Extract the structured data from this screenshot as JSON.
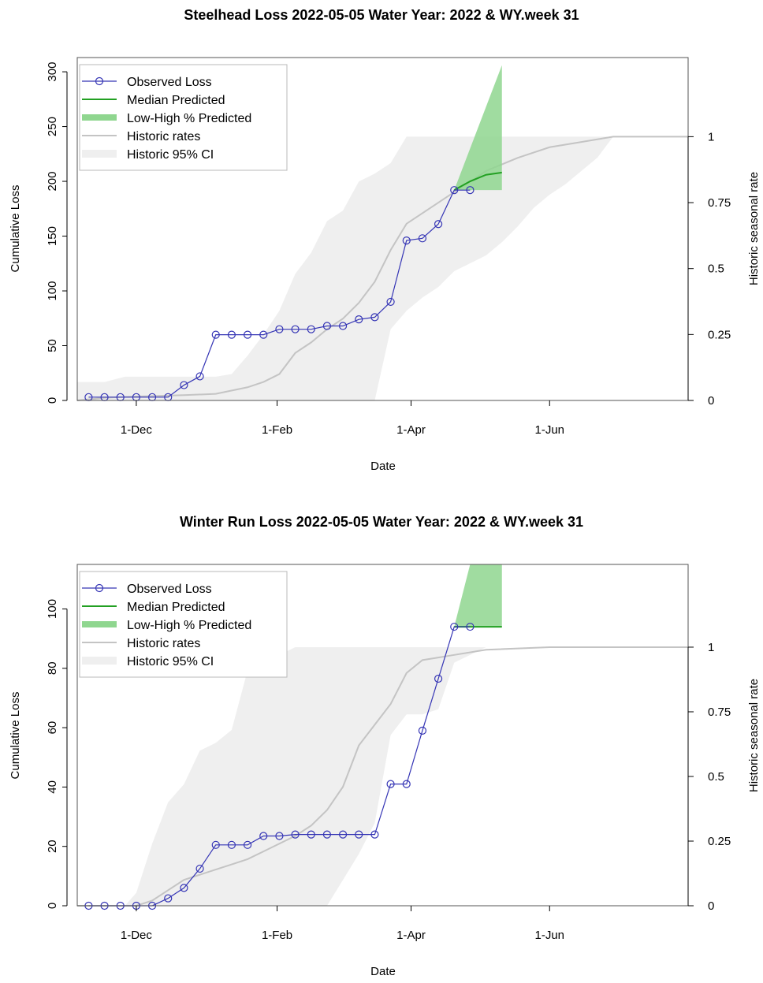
{
  "charts": [
    {
      "title": "Steelhead Loss 2022-05-05  Water Year: 2022 & WY.week 31",
      "xlabel": "Date",
      "ylabel": "Cumulative Loss",
      "y2label": "Historic seasonal rate",
      "legend": [
        "Observed Loss",
        "Median Predicted",
        "Low-High % Predicted",
        "Historic rates",
        "Historic 95% CI"
      ]
    },
    {
      "title": "Winter Run Loss 2022-05-05  Water Year: 2022 & WY.week 31",
      "xlabel": "Date",
      "ylabel": "Cumulative Loss",
      "y2label": "Historic seasonal rate",
      "legend": [
        "Observed Loss",
        "Median Predicted",
        "Low-High % Predicted",
        "Historic rates",
        "Historic 95% CI"
      ]
    }
  ],
  "chart_data": [
    {
      "type": "line",
      "title": "Steelhead Loss 2022-05-05  Water Year: 2022 & WY.week 31",
      "xlabel": "Date",
      "ylabel": "Cumulative Loss",
      "y2label": "Historic seasonal rate",
      "x_day_range": [
        -26,
        243
      ],
      "ylim": [
        0,
        313
      ],
      "y2lim": [
        0,
        1.3
      ],
      "yticks": [
        0,
        50,
        100,
        150,
        200,
        250,
        300
      ],
      "y2ticks": [
        0,
        0.25,
        0.5,
        0.75,
        1
      ],
      "y2ticklabels": [
        "0",
        "0.25",
        "0.5",
        "0.75",
        "1"
      ],
      "xticks": [
        {
          "label": "1-Dec",
          "day": 0
        },
        {
          "label": "1-Feb",
          "day": 62
        },
        {
          "label": "1-Apr",
          "day": 121
        },
        {
          "label": "1-Jun",
          "day": 182
        }
      ],
      "legend_position": "top-left",
      "grid": false,
      "colors": {
        "observed": "#3535b5",
        "median": "#22a022",
        "predicted_band": "#8fd68f",
        "historic": "#c4c4c4",
        "historic_ci": "#efefef"
      },
      "series": [
        {
          "name": "Observed Loss",
          "x": [
            -21,
            -14,
            -7,
            0,
            7,
            14,
            21,
            28,
            35,
            42,
            49,
            56,
            63,
            70,
            77,
            84,
            91,
            98,
            105,
            112,
            119,
            126,
            133,
            140,
            147,
            154
          ],
          "values": [
            3,
            3,
            3,
            3,
            3,
            3,
            14,
            22,
            60,
            60,
            60,
            60,
            65,
            65,
            65,
            68,
            68,
            74,
            76,
            90,
            146,
            148,
            161,
            192,
            192,
            null
          ]
        },
        {
          "name": "Median Predicted",
          "x": [
            140,
            147,
            154,
            161
          ],
          "values": [
            192,
            200,
            206,
            208
          ]
        },
        {
          "name": "Low-High % Predicted",
          "x": [
            140,
            161
          ],
          "low": [
            192,
            192
          ],
          "high": [
            192,
            306
          ]
        },
        {
          "name": "Historic rates",
          "x": [
            -26,
            -14,
            0,
            21,
            35,
            49,
            56,
            63,
            70,
            77,
            84,
            91,
            98,
            105,
            112,
            119,
            126,
            133,
            140,
            147,
            154,
            168,
            182,
            196,
            210,
            230,
            243
          ],
          "values": [
            0.0,
            0.01,
            0.015,
            0.02,
            0.025,
            0.05,
            0.07,
            0.1,
            0.18,
            0.22,
            0.27,
            0.31,
            0.37,
            0.45,
            0.57,
            0.67,
            0.71,
            0.75,
            0.79,
            0.83,
            0.87,
            0.92,
            0.96,
            0.98,
            1.0,
            1.0,
            1.0
          ]
        },
        {
          "name": "Historic 95% CI",
          "x": [
            -26,
            -14,
            -5,
            10,
            25,
            35,
            42,
            49,
            56,
            63,
            70,
            77,
            84,
            91,
            98,
            105,
            112,
            119,
            126,
            133,
            140,
            147,
            154,
            161,
            168,
            175,
            182,
            189,
            196,
            203,
            210,
            230,
            243
          ],
          "low": [
            0,
            0,
            0,
            0,
            0,
            0,
            0,
            0,
            0,
            0,
            0,
            0,
            0,
            0,
            0,
            0,
            0.27,
            0.34,
            0.39,
            0.43,
            0.49,
            0.52,
            0.55,
            0.6,
            0.66,
            0.73,
            0.78,
            0.82,
            0.87,
            0.92,
            1.0,
            1.0,
            1.0
          ],
          "high": [
            0.07,
            0.07,
            0.09,
            0.09,
            0.09,
            0.09,
            0.1,
            0.17,
            0.25,
            0.34,
            0.48,
            0.56,
            0.68,
            0.72,
            0.83,
            0.86,
            0.9,
            1.0,
            1.0,
            1.0,
            1.0,
            1.0,
            1.0,
            1.0,
            1.0,
            1.0,
            1.0,
            1.0,
            1.0,
            1.0,
            1.0,
            1.0,
            1.0
          ]
        }
      ]
    },
    {
      "type": "line",
      "title": "Winter Run Loss 2022-05-05  Water Year: 2022 & WY.week 31",
      "xlabel": "Date",
      "ylabel": "Cumulative Loss",
      "y2label": "Historic seasonal rate",
      "x_day_range": [
        -26,
        243
      ],
      "ylim": [
        0,
        115
      ],
      "y2lim": [
        0,
        1.32
      ],
      "yticks": [
        0,
        20,
        40,
        60,
        80,
        100
      ],
      "y2ticks": [
        0,
        0.25,
        0.5,
        0.75,
        1
      ],
      "y2ticklabels": [
        "0",
        "0.25",
        "0.5",
        "0.75",
        "1"
      ],
      "xticks": [
        {
          "label": "1-Dec",
          "day": 0
        },
        {
          "label": "1-Feb",
          "day": 62
        },
        {
          "label": "1-Apr",
          "day": 121
        },
        {
          "label": "1-Jun",
          "day": 182
        }
      ],
      "legend_position": "top-left",
      "grid": false,
      "colors": {
        "observed": "#3535b5",
        "median": "#22a022",
        "predicted_band": "#8fd68f",
        "historic": "#c4c4c4",
        "historic_ci": "#efefef"
      },
      "series": [
        {
          "name": "Observed Loss",
          "x": [
            -21,
            -14,
            -7,
            0,
            7,
            14,
            21,
            28,
            35,
            42,
            49,
            56,
            63,
            70,
            77,
            84,
            91,
            98,
            105,
            112,
            119,
            126,
            133,
            140,
            147
          ],
          "values": [
            0,
            0,
            0,
            0,
            0,
            2.5,
            6,
            12.5,
            20.5,
            20.5,
            20.5,
            23.5,
            23.5,
            24,
            24,
            24,
            24,
            24,
            24,
            41,
            41,
            59,
            76.5,
            94,
            94
          ]
        },
        {
          "name": "Median Predicted",
          "x": [
            140,
            147,
            154,
            161
          ],
          "values": [
            94,
            94,
            94,
            94
          ]
        },
        {
          "name": "Low-High % Predicted",
          "x": [
            140,
            147,
            161
          ],
          "low": [
            94,
            94,
            94
          ],
          "high": [
            94,
            115,
            115
          ]
        },
        {
          "name": "Historic rates",
          "x": [
            -26,
            -7,
            0,
            7,
            14,
            21,
            28,
            35,
            42,
            49,
            56,
            63,
            70,
            77,
            84,
            91,
            98,
            105,
            112,
            119,
            126,
            133,
            140,
            154,
            182,
            210,
            243
          ],
          "values": [
            0,
            0,
            0,
            0.02,
            0.06,
            0.1,
            0.12,
            0.14,
            0.16,
            0.18,
            0.21,
            0.24,
            0.27,
            0.31,
            0.37,
            0.46,
            0.62,
            0.7,
            0.78,
            0.9,
            0.95,
            0.96,
            0.97,
            0.99,
            1.0,
            1.0,
            1.0
          ]
        },
        {
          "name": "Historic 95% CI",
          "x": [
            -26,
            -5,
            0,
            7,
            14,
            21,
            28,
            35,
            42,
            49,
            56,
            63,
            70,
            77,
            84,
            91,
            98,
            105,
            112,
            119,
            126,
            133,
            140,
            154,
            182,
            210,
            243
          ],
          "low": [
            0,
            0,
            0,
            0,
            0,
            0,
            0,
            0,
            0,
            0,
            0,
            0,
            0,
            0,
            0,
            0.1,
            0.2,
            0.32,
            0.66,
            0.74,
            0.74,
            0.76,
            0.94,
            1.0,
            1.0,
            1.0,
            1.0
          ],
          "high": [
            0,
            0,
            0.05,
            0.24,
            0.4,
            0.47,
            0.6,
            0.63,
            0.68,
            0.91,
            0.92,
            0.97,
            1.0,
            1.0,
            1.0,
            1.0,
            1.0,
            1.0,
            1.0,
            1.0,
            1.0,
            1.0,
            1.0,
            1.0,
            1.0,
            1.0,
            1.0
          ]
        }
      ]
    }
  ]
}
